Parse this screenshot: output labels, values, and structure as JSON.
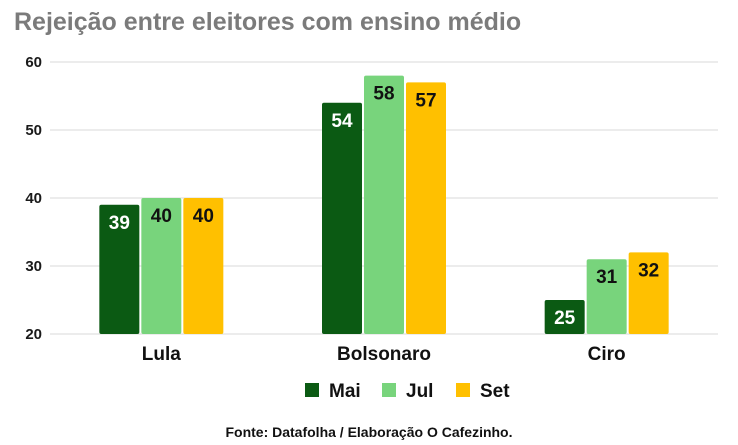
{
  "title": "Rejeição entre eleitores com ensino médio",
  "source": "Fonte: Datafolha / Elaboração O Cafezinho.",
  "chart_data": {
    "type": "bar",
    "categories": [
      "Lula",
      "Bolsonaro",
      "Ciro"
    ],
    "series": [
      {
        "name": "Mai",
        "color": "#0b5a13",
        "label_color": "#ffffff",
        "values": [
          39,
          54,
          25
        ]
      },
      {
        "name": "Jul",
        "color": "#78d47c",
        "label_color": "#111111",
        "values": [
          40,
          58,
          31
        ]
      },
      {
        "name": "Set",
        "color": "#ffc000",
        "label_color": "#111111",
        "values": [
          40,
          57,
          32
        ]
      }
    ],
    "ylim": [
      20,
      60
    ],
    "yticks": [
      20,
      30,
      40,
      50,
      60
    ],
    "grid": true,
    "legend_position": "bottom"
  }
}
